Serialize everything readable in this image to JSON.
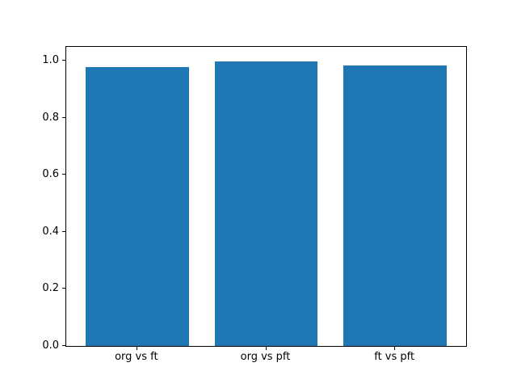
{
  "chart_data": {
    "type": "bar",
    "title": "",
    "xlabel": "",
    "ylabel": "",
    "categories": [
      "org vs ft",
      "org vs pft",
      "ft vs pft"
    ],
    "values": [
      0.977,
      0.998,
      0.983
    ],
    "yticks": [
      0.0,
      0.2,
      0.4,
      0.6,
      0.8,
      1.0
    ],
    "ytick_labels": [
      "0.0",
      "0.2",
      "0.4",
      "0.6",
      "0.8",
      "1.0"
    ],
    "ylim": [
      0,
      1.048
    ],
    "xlim": [
      -0.55,
      2.55
    ],
    "bar_width": 0.8,
    "bar_color": "#1f77b4",
    "axis_color": "#000000",
    "background_color": "#ffffff",
    "grid": false,
    "legend": null
  }
}
